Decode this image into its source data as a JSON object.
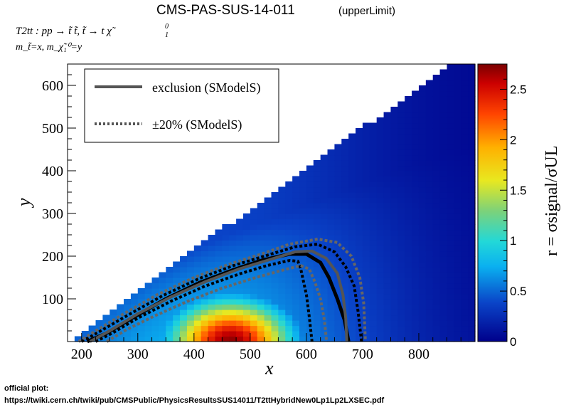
{
  "chart_data": {
    "type": "heatmap",
    "title": "CMS-PAS-SUS-14-011",
    "title_suffix": "(upperLimit)",
    "process_label": "T2tt : pp → t̃ t̃, t̃  → t χ̃",
    "process_sup": "0",
    "process_sub": "1",
    "mass_label": "m_t̃=x, m_χ̃₁⁰=y",
    "xlabel": "x",
    "ylabel": "y",
    "zlabel": "r = σsignal/σUL",
    "xlim": [
      175,
      900
    ],
    "ylim": [
      0,
      650
    ],
    "zlim": [
      0,
      2.75
    ],
    "x_ticks": [
      200,
      300,
      400,
      500,
      600,
      700,
      800
    ],
    "y_ticks": [
      100,
      200,
      300,
      400,
      500,
      600
    ],
    "z_ticks": [
      0,
      0.5,
      1,
      1.5,
      2,
      2.5
    ],
    "z_tick_labels": [
      "0",
      "0.5",
      "1",
      "1.5",
      "2",
      "2.5"
    ],
    "grid": false,
    "legend_position": "top-left",
    "legend": [
      {
        "label": "exclusion (SModelS)",
        "style": "solid",
        "color": "#555555"
      },
      {
        "label": "±20% (SModelS)",
        "style": "dotted",
        "color": "#555555"
      }
    ],
    "heatmap_peak": {
      "x": 465,
      "y": 0,
      "value": 2.7
    },
    "contours": {
      "exclusion_smodels": [
        [
          215,
          0
        ],
        [
          250,
          25
        ],
        [
          300,
          65
        ],
        [
          360,
          105
        ],
        [
          420,
          140
        ],
        [
          480,
          170
        ],
        [
          530,
          190
        ],
        [
          580,
          210
        ],
        [
          610,
          212
        ],
        [
          635,
          195
        ],
        [
          655,
          160
        ],
        [
          665,
          110
        ],
        [
          670,
          55
        ],
        [
          672,
          0
        ]
      ],
      "exclusion_plus20": [
        [
          245,
          0
        ],
        [
          280,
          28
        ],
        [
          330,
          60
        ],
        [
          390,
          95
        ],
        [
          450,
          125
        ],
        [
          510,
          150
        ],
        [
          560,
          168
        ],
        [
          590,
          178
        ],
        [
          605,
          170
        ],
        [
          615,
          140
        ],
        [
          625,
          100
        ],
        [
          632,
          50
        ],
        [
          636,
          0
        ]
      ],
      "exclusion_minus20": [
        [
          195,
          0
        ],
        [
          225,
          25
        ],
        [
          275,
          65
        ],
        [
          335,
          110
        ],
        [
          400,
          150
        ],
        [
          460,
          180
        ],
        [
          520,
          205
        ],
        [
          570,
          228
        ],
        [
          620,
          240
        ],
        [
          655,
          232
        ],
        [
          680,
          200
        ],
        [
          695,
          150
        ],
        [
          702,
          90
        ],
        [
          705,
          0
        ]
      ],
      "official": [
        [
          210,
          0
        ],
        [
          245,
          20
        ],
        [
          290,
          55
        ],
        [
          350,
          100
        ],
        [
          410,
          138
        ],
        [
          470,
          168
        ],
        [
          520,
          190
        ],
        [
          570,
          205
        ],
        [
          600,
          205
        ],
        [
          625,
          185
        ],
        [
          640,
          150
        ],
        [
          655,
          100
        ],
        [
          668,
          50
        ],
        [
          675,
          0
        ]
      ],
      "official_plus": [
        [
          225,
          0
        ],
        [
          255,
          20
        ],
        [
          300,
          55
        ],
        [
          360,
          95
        ],
        [
          420,
          130
        ],
        [
          480,
          158
        ],
        [
          530,
          178
        ],
        [
          570,
          190
        ],
        [
          585,
          188
        ],
        [
          590,
          170
        ],
        [
          595,
          140
        ],
        [
          600,
          110
        ],
        [
          605,
          60
        ],
        [
          610,
          0
        ]
      ],
      "official_minus": [
        [
          200,
          0
        ],
        [
          230,
          22
        ],
        [
          280,
          60
        ],
        [
          345,
          108
        ],
        [
          410,
          148
        ],
        [
          470,
          178
        ],
        [
          530,
          202
        ],
        [
          580,
          222
        ],
        [
          620,
          228
        ],
        [
          650,
          210
        ],
        [
          670,
          175
        ],
        [
          685,
          130
        ],
        [
          692,
          70
        ],
        [
          698,
          0
        ]
      ]
    }
  },
  "footer": {
    "label": "official plot:",
    "url": "https://twiki.cern.ch/twiki/pub/CMSPublic/PhysicsResultsSUS14011/T2ttHybridNew0Lp1Lp2LXSEC.pdf"
  }
}
